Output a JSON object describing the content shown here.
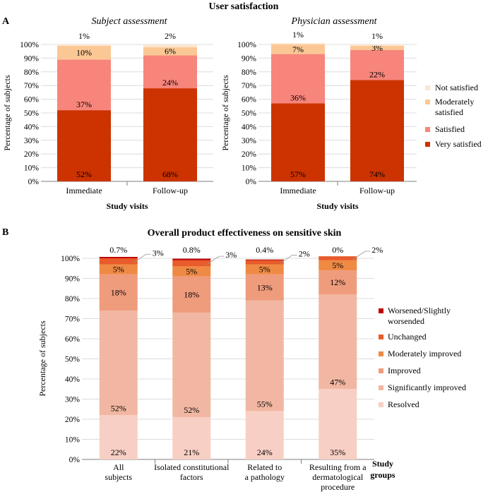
{
  "figure_title": "User satisfaction",
  "panel_a_label": "A",
  "panel_b_label": "B",
  "colors": {
    "very_satisfied": "#cc3300",
    "satisfied": "#f7857b",
    "moderately_satisfied": "#fbc895",
    "not_satisfied": "#fde6cf",
    "resolved": "#f8cfc4",
    "significantly_improved": "#f2b7a2",
    "improved": "#ef9c7c",
    "moderately_improved": "#ef8a45",
    "unchanged": "#e85b2a",
    "worsened": "#c00000"
  },
  "chart_data": [
    {
      "id": "subject",
      "type": "bar",
      "stacked": true,
      "title": "Subject assessment",
      "xlabel": "Study visits",
      "ylabel": "Percentage of subjects",
      "ylim": [
        0,
        100
      ],
      "yticks": [
        "0%",
        "10%",
        "20%",
        "30%",
        "40%",
        "50%",
        "60%",
        "70%",
        "80%",
        "90%",
        "100%"
      ],
      "categories": [
        "Immediate",
        "Follow-up"
      ],
      "series": [
        {
          "name": "Very satisfied",
          "color": "#cc3300",
          "values": [
            52,
            68
          ],
          "labels": [
            "52%",
            "68%"
          ]
        },
        {
          "name": "Satisfied",
          "color": "#f7857b",
          "values": [
            37,
            24
          ],
          "labels": [
            "37%",
            "24%"
          ]
        },
        {
          "name": "Moderately satisfied",
          "color": "#fbc895",
          "values": [
            10,
            6
          ],
          "labels": [
            "10%",
            "6%"
          ]
        },
        {
          "name": "Not satisfied",
          "color": "#fde6cf",
          "values": [
            1,
            2
          ],
          "labels": [
            "1%",
            "2%"
          ]
        }
      ]
    },
    {
      "id": "physician",
      "type": "bar",
      "stacked": true,
      "title": "Physician assessment",
      "xlabel": "Study visits",
      "ylabel": "Percentage of subjects",
      "ylim": [
        0,
        100
      ],
      "yticks": [
        "0%",
        "10%",
        "20%",
        "30%",
        "40%",
        "50%",
        "60%",
        "70%",
        "80%",
        "90%",
        "100%"
      ],
      "categories": [
        "Immediate",
        "Follow-up"
      ],
      "legend": "right",
      "series": [
        {
          "name": "Very satisfied",
          "color": "#cc3300",
          "values": [
            57,
            74
          ],
          "labels": [
            "57%",
            "74%"
          ]
        },
        {
          "name": "Satisfied",
          "color": "#f7857b",
          "values": [
            36,
            22
          ],
          "labels": [
            "36%",
            "22%"
          ]
        },
        {
          "name": "Moderately satisfied",
          "color": "#fbc895",
          "values": [
            7,
            3
          ],
          "labels": [
            "7%",
            "3%"
          ]
        },
        {
          "name": "Not satisfied",
          "color": "#fde6cf",
          "values": [
            1,
            1
          ],
          "labels": [
            "1%",
            "1%"
          ]
        }
      ]
    },
    {
      "id": "effectiveness",
      "type": "bar",
      "stacked": true,
      "title": "Overall product effectiveness on sensitive skin",
      "xlabel": "Study groups",
      "ylabel": "Percentage of subjects",
      "ylim": [
        0,
        100
      ],
      "yticks": [
        "0%",
        "10%",
        "20%",
        "30%",
        "40%",
        "50%",
        "60%",
        "70%",
        "80%",
        "90%",
        "100%"
      ],
      "categories": [
        [
          "All",
          "subjects"
        ],
        [
          "Isolated constitutional",
          "factors"
        ],
        [
          "Related to",
          "a pathology"
        ],
        [
          "Resulting from a",
          "dermatological",
          "procedure"
        ]
      ],
      "legend": "right",
      "series": [
        {
          "name": "Resolved",
          "color": "#f8cfc4",
          "values": [
            22,
            21,
            24,
            35
          ],
          "labels": [
            "22%",
            "21%",
            "24%",
            "35%"
          ]
        },
        {
          "name": "Significantly improved",
          "color": "#f2b7a2",
          "values": [
            52,
            52,
            55,
            47
          ],
          "labels": [
            "52%",
            "52%",
            "55%",
            "47%"
          ]
        },
        {
          "name": "Improved",
          "color": "#ef9c7c",
          "values": [
            18,
            18,
            13,
            12
          ],
          "labels": [
            "18%",
            "18%",
            "13%",
            "12%"
          ]
        },
        {
          "name": "Moderately improved",
          "color": "#ef8a45",
          "values": [
            5,
            5,
            5,
            5
          ],
          "labels": [
            "5%",
            "5%",
            "5%",
            "5%"
          ]
        },
        {
          "name": "Unchanged",
          "color": "#e85b2a",
          "values": [
            3,
            3,
            2,
            2
          ],
          "labels": [
            "3%",
            "3%",
            "2%",
            "2%"
          ]
        },
        {
          "name": "Worsened/Slightly worsended",
          "legend_lines": [
            "Worsened/Slightly",
            "worsended"
          ],
          "color": "#c00000",
          "values": [
            0.7,
            0.8,
            0.4,
            0
          ],
          "labels": [
            "0.7%",
            "0.8%",
            "0.4%",
            "0%"
          ]
        }
      ]
    }
  ]
}
